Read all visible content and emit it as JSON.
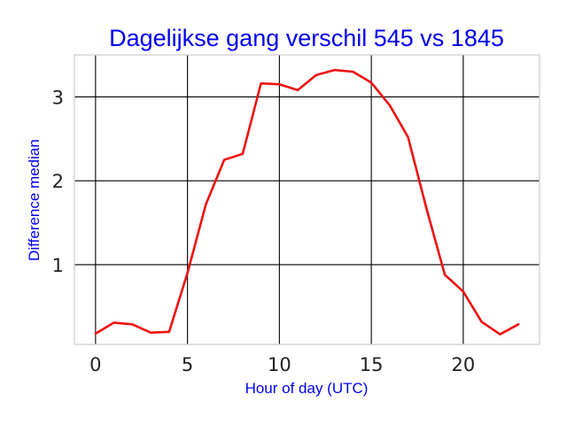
{
  "chart_data": {
    "type": "line",
    "title": "Dagelijkse gang verschil 545 vs 1845",
    "xlabel": "Hour of day (UTC)",
    "ylabel": "Difference median",
    "xlim": [
      -1.15,
      24.15
    ],
    "ylim": [
      0.05,
      3.5
    ],
    "x_ticks": [
      0,
      5,
      10,
      15,
      20
    ],
    "y_ticks": [
      1,
      2,
      3
    ],
    "grid": true,
    "legend": "none",
    "series": [
      {
        "color": "#ee1111",
        "x": [
          0,
          1,
          2,
          3,
          4,
          5,
          6,
          7,
          8,
          9,
          10,
          11,
          12,
          13,
          14,
          15,
          16,
          17,
          18,
          19,
          20,
          21,
          22,
          23
        ],
        "y": [
          0.18,
          0.31,
          0.29,
          0.19,
          0.2,
          0.9,
          1.72,
          2.25,
          2.32,
          3.16,
          3.15,
          3.08,
          3.26,
          3.32,
          3.3,
          3.17,
          2.9,
          2.52,
          1.67,
          0.88,
          0.68,
          0.32,
          0.17,
          0.29
        ]
      }
    ]
  },
  "colors": {
    "title": "#0000ee",
    "labels": "#0000ee",
    "grid": "#000000",
    "frame": "#cccccc",
    "ticks": "#222222"
  }
}
